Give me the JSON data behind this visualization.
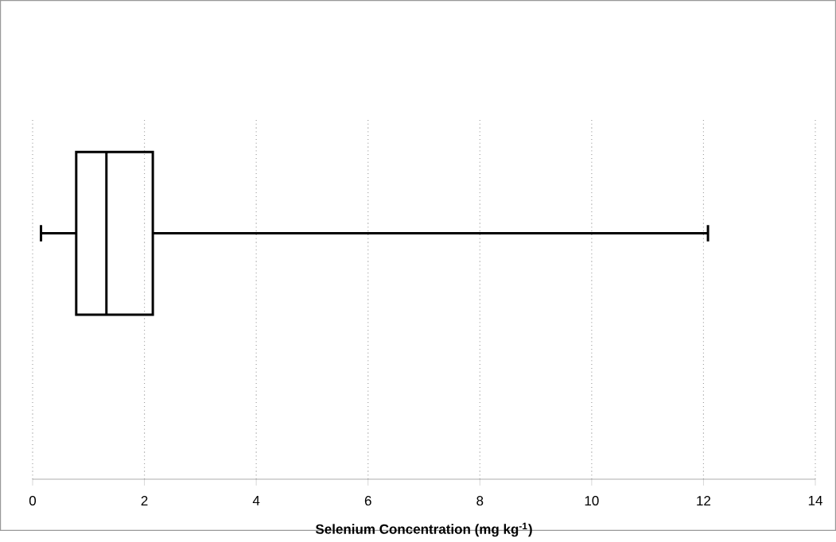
{
  "chart_data": {
    "type": "box",
    "orientation": "horizontal",
    "categories": [
      null
    ],
    "boxes": [
      {
        "low": 0.15,
        "q1": 0.78,
        "median": 1.32,
        "q3": 2.15,
        "high": 12.08
      }
    ],
    "color": "#000000",
    "xlabel": "Selenium Concentration (mg kg$^{-1}$)",
    "xlim": [
      0,
      14
    ],
    "xticks": [
      0,
      2,
      4,
      6,
      8,
      10,
      12,
      14
    ],
    "grid": "x"
  }
}
